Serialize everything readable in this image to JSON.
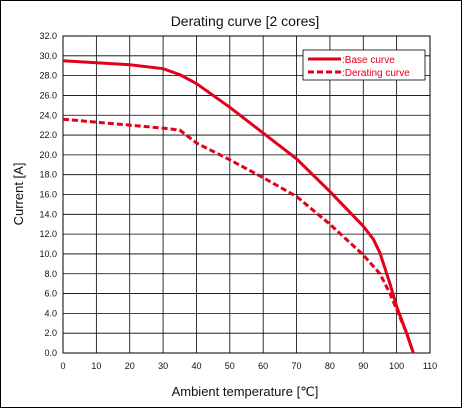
{
  "chart_data": {
    "type": "line",
    "title": "Derating curve [2 cores]",
    "xlabel": "Ambient temperature [℃]",
    "ylabel": "Current [A]",
    "xlim": [
      0,
      110
    ],
    "ylim": [
      0,
      32
    ],
    "x_ticks": [
      "0",
      "10",
      "20",
      "30",
      "40",
      "50",
      "60",
      "70",
      "80",
      "90",
      "100",
      "110"
    ],
    "y_ticks": [
      "0.0",
      "2.0",
      "4.0",
      "6.0",
      "8.0",
      "10.0",
      "12.0",
      "14.0",
      "16.0",
      "18.0",
      "20.0",
      "22.0",
      "24.0",
      "26.0",
      "28.0",
      "30.0",
      "32.0"
    ],
    "grid": true,
    "legend_position": "top-right",
    "color": "#e2001a",
    "series": [
      {
        "name": ":Base curve",
        "style": "solid",
        "x": [
          0,
          10,
          20,
          30,
          35,
          40,
          50,
          60,
          70,
          80,
          90,
          93,
          95,
          98,
          100,
          103,
          105
        ],
        "y": [
          29.5,
          29.3,
          29.1,
          28.7,
          28.1,
          27.2,
          24.8,
          22.2,
          19.6,
          16.3,
          12.8,
          11.5,
          10.1,
          7.0,
          4.7,
          2.0,
          0.0
        ]
      },
      {
        "name": ":Derating curve",
        "style": "dashed",
        "x": [
          0,
          10,
          20,
          30,
          35,
          40,
          50,
          60,
          70,
          80,
          90,
          95,
          98,
          100,
          103,
          105
        ],
        "y": [
          23.6,
          23.3,
          23.0,
          22.7,
          22.5,
          21.2,
          19.5,
          17.7,
          15.8,
          13.0,
          9.9,
          8.0,
          6.0,
          4.4,
          2.0,
          0.0
        ]
      }
    ]
  }
}
